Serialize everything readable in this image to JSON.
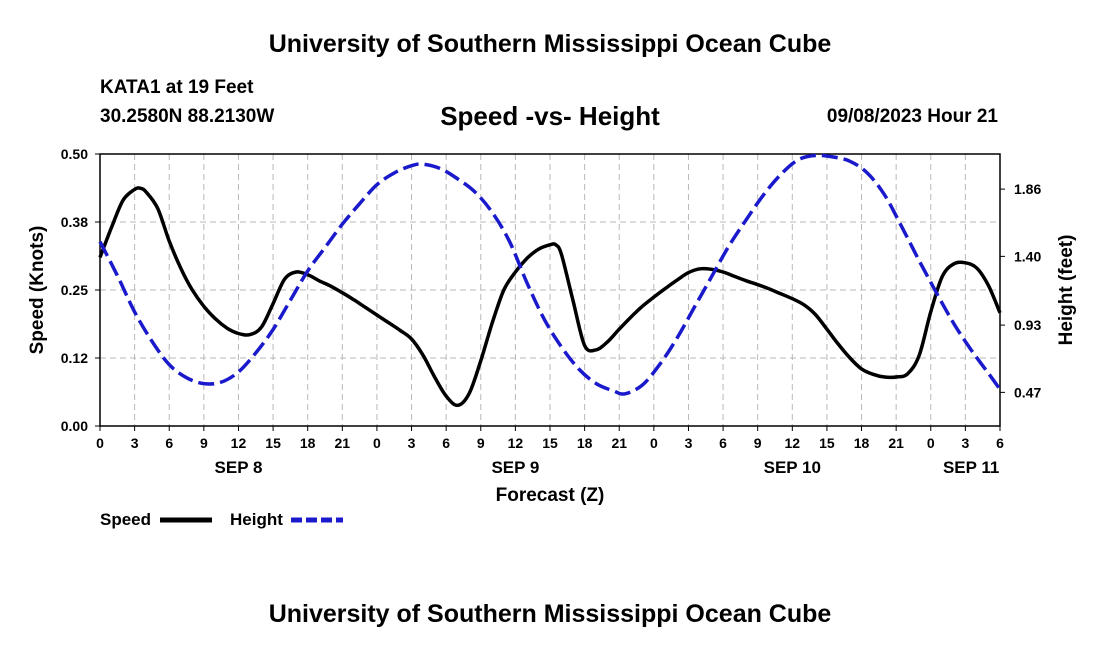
{
  "page": {
    "title_top": "University of Southern Mississippi Ocean Cube",
    "title_bottom": "University of Southern Mississippi Ocean Cube",
    "station": "KATA1 at 19 Feet",
    "coords": "30.2580N  88.2130W",
    "datetime": "09/08/2023 Hour 21"
  },
  "chart_data": {
    "type": "line",
    "title": "Speed -vs- Height",
    "xlabel": "Forecast (Z)",
    "ylabel": "Speed (Knots)",
    "y2label": "Height (feet)",
    "x_unit": "hours from SEP 7 21Z",
    "x_range": [
      0,
      78
    ],
    "ylim": [
      0,
      0.5
    ],
    "y2lim": [
      0.24,
      2.1
    ],
    "grid": true,
    "x_ticks": [
      {
        "x": 0,
        "label": "0"
      },
      {
        "x": 3,
        "label": "3"
      },
      {
        "x": 6,
        "label": "6"
      },
      {
        "x": 9,
        "label": "9"
      },
      {
        "x": 12,
        "label": "12"
      },
      {
        "x": 15,
        "label": "15"
      },
      {
        "x": 18,
        "label": "18"
      },
      {
        "x": 21,
        "label": "21"
      },
      {
        "x": 24,
        "label": "0"
      },
      {
        "x": 27,
        "label": "3"
      },
      {
        "x": 30,
        "label": "6"
      },
      {
        "x": 33,
        "label": "9"
      },
      {
        "x": 36,
        "label": "12"
      },
      {
        "x": 39,
        "label": "15"
      },
      {
        "x": 42,
        "label": "18"
      },
      {
        "x": 45,
        "label": "21"
      },
      {
        "x": 48,
        "label": "0"
      },
      {
        "x": 51,
        "label": "3"
      },
      {
        "x": 54,
        "label": "6"
      },
      {
        "x": 57,
        "label": "9"
      },
      {
        "x": 60,
        "label": "12"
      },
      {
        "x": 63,
        "label": "15"
      },
      {
        "x": 66,
        "label": "18"
      },
      {
        "x": 69,
        "label": "21"
      },
      {
        "x": 72,
        "label": "0"
      },
      {
        "x": 75,
        "label": "3"
      },
      {
        "x": 78,
        "label": "6"
      }
    ],
    "day_labels": [
      {
        "x": 12,
        "label": "SEP 8"
      },
      {
        "x": 36,
        "label": "SEP 9"
      },
      {
        "x": 60,
        "label": "SEP 10"
      },
      {
        "x": 75.5,
        "label": "SEP 11"
      }
    ],
    "y_ticks": [
      "0.00",
      "0.12",
      "0.25",
      "0.38",
      "0.50"
    ],
    "y_tick_values": [
      0,
      0.125,
      0.25,
      0.375,
      0.5
    ],
    "y2_ticks": [
      "0.47",
      "0.93",
      "1.40",
      "1.86"
    ],
    "y2_tick_values": [
      0.47,
      0.93,
      1.4,
      1.86
    ],
    "series": [
      {
        "name": "Speed",
        "axis": "left",
        "color": "#000000",
        "style": "solid",
        "points": [
          [
            0,
            0.31
          ],
          [
            1,
            0.365
          ],
          [
            2,
            0.415
          ],
          [
            3,
            0.435
          ],
          [
            3.5,
            0.437
          ],
          [
            4,
            0.43
          ],
          [
            5,
            0.4
          ],
          [
            6,
            0.34
          ],
          [
            7,
            0.29
          ],
          [
            8,
            0.25
          ],
          [
            9,
            0.22
          ],
          [
            10,
            0.197
          ],
          [
            11,
            0.18
          ],
          [
            12,
            0.17
          ],
          [
            13,
            0.168
          ],
          [
            14,
            0.182
          ],
          [
            15,
            0.225
          ],
          [
            16,
            0.27
          ],
          [
            17,
            0.283
          ],
          [
            18,
            0.278
          ],
          [
            19,
            0.267
          ],
          [
            20,
            0.257
          ],
          [
            21,
            0.245
          ],
          [
            22,
            0.232
          ],
          [
            23,
            0.218
          ],
          [
            24,
            0.204
          ],
          [
            25,
            0.19
          ],
          [
            26,
            0.176
          ],
          [
            27,
            0.16
          ],
          [
            28,
            0.13
          ],
          [
            29,
            0.09
          ],
          [
            30,
            0.055
          ],
          [
            31,
            0.038
          ],
          [
            32,
            0.06
          ],
          [
            33,
            0.12
          ],
          [
            34,
            0.19
          ],
          [
            35,
            0.25
          ],
          [
            36,
            0.283
          ],
          [
            37,
            0.308
          ],
          [
            38,
            0.325
          ],
          [
            39,
            0.333
          ],
          [
            39.5,
            0.333
          ],
          [
            40,
            0.315
          ],
          [
            41,
            0.23
          ],
          [
            42,
            0.148
          ],
          [
            43,
            0.14
          ],
          [
            44,
            0.155
          ],
          [
            45,
            0.178
          ],
          [
            46,
            0.2
          ],
          [
            47,
            0.22
          ],
          [
            48,
            0.237
          ],
          [
            49,
            0.253
          ],
          [
            50,
            0.268
          ],
          [
            51,
            0.282
          ],
          [
            52,
            0.289
          ],
          [
            53,
            0.288
          ],
          [
            54,
            0.283
          ],
          [
            55,
            0.275
          ],
          [
            56,
            0.267
          ],
          [
            57,
            0.26
          ],
          [
            58,
            0.252
          ],
          [
            59,
            0.243
          ],
          [
            60,
            0.234
          ],
          [
            61,
            0.223
          ],
          [
            62,
            0.205
          ],
          [
            63,
            0.178
          ],
          [
            64,
            0.15
          ],
          [
            65,
            0.125
          ],
          [
            66,
            0.105
          ],
          [
            67,
            0.095
          ],
          [
            68,
            0.09
          ],
          [
            69,
            0.09
          ],
          [
            70,
            0.096
          ],
          [
            71,
            0.13
          ],
          [
            72,
            0.21
          ],
          [
            73,
            0.275
          ],
          [
            74,
            0.298
          ],
          [
            75,
            0.3
          ],
          [
            76,
            0.29
          ],
          [
            77,
            0.258
          ],
          [
            78,
            0.208
          ]
        ]
      },
      {
        "name": "Height",
        "axis": "right",
        "color": "#1a1acc",
        "style": "dashed",
        "points": [
          [
            0,
            1.5
          ],
          [
            1.5,
            1.27
          ],
          [
            3,
            1.02
          ],
          [
            4.5,
            0.82
          ],
          [
            6,
            0.66
          ],
          [
            7.5,
            0.57
          ],
          [
            9,
            0.53
          ],
          [
            10.5,
            0.54
          ],
          [
            12,
            0.61
          ],
          [
            13.5,
            0.74
          ],
          [
            15,
            0.9
          ],
          [
            16.5,
            1.1
          ],
          [
            18,
            1.3
          ],
          [
            19.5,
            1.46
          ],
          [
            21,
            1.62
          ],
          [
            22.5,
            1.76
          ],
          [
            24,
            1.89
          ],
          [
            25.5,
            1.97
          ],
          [
            27,
            2.02
          ],
          [
            28,
            2.03
          ],
          [
            29.5,
            2.0
          ],
          [
            31,
            1.93
          ],
          [
            32.5,
            1.84
          ],
          [
            34,
            1.7
          ],
          [
            35.5,
            1.5
          ],
          [
            37,
            1.22
          ],
          [
            38.5,
            0.97
          ],
          [
            40,
            0.78
          ],
          [
            41.5,
            0.63
          ],
          [
            43,
            0.53
          ],
          [
            44.5,
            0.48
          ],
          [
            45.5,
            0.46
          ],
          [
            47,
            0.52
          ],
          [
            48.5,
            0.66
          ],
          [
            50,
            0.84
          ],
          [
            51.5,
            1.05
          ],
          [
            53,
            1.26
          ],
          [
            54.5,
            1.47
          ],
          [
            56,
            1.65
          ],
          [
            57.5,
            1.82
          ],
          [
            59,
            1.96
          ],
          [
            60.5,
            2.06
          ],
          [
            62,
            2.09
          ],
          [
            63.5,
            2.08
          ],
          [
            65,
            2.05
          ],
          [
            66.5,
            1.97
          ],
          [
            68,
            1.82
          ],
          [
            69.5,
            1.6
          ],
          [
            71,
            1.37
          ],
          [
            72.5,
            1.15
          ],
          [
            74,
            0.94
          ],
          [
            75.5,
            0.76
          ],
          [
            77,
            0.6
          ],
          [
            78,
            0.49
          ]
        ]
      }
    ]
  },
  "legend": {
    "speed_label": "Speed",
    "height_label": "Height",
    "speed_color": "#000000",
    "height_color": "#1a1acc"
  }
}
